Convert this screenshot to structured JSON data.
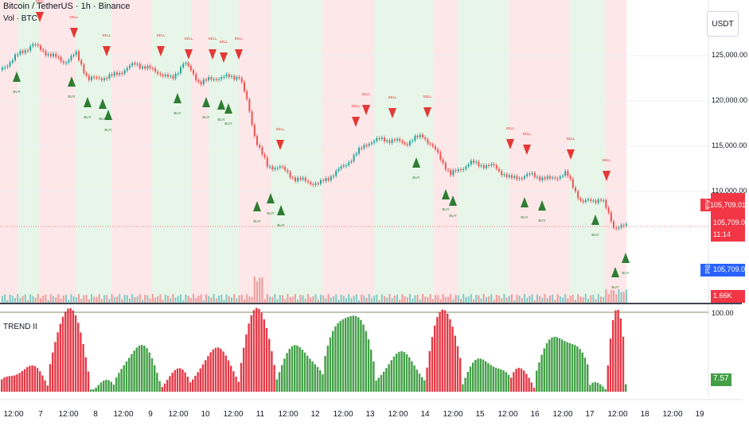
{
  "header": {
    "title": "Bitcoin / TetherUS · 1h · Binance",
    "volume_label": "Vol · BTC"
  },
  "currency": "USDT",
  "y_axis": [
    "125,000.00",
    "120,000.00",
    "115,000.00",
    "110,000.00"
  ],
  "price_tags": {
    "ask_label": "Ask",
    "ask": "105,709.01",
    "last": "105,709.01",
    "countdown": "11:14",
    "bid_label": "Bid",
    "bid": "105,709.00",
    "volume": "1.66K"
  },
  "trend_pane": {
    "label": "TREND II",
    "top_tick": "100.00",
    "value": "7.57"
  },
  "x_axis": [
    "12:00",
    "7",
    "12:00",
    "8",
    "12:00",
    "9",
    "12:00",
    "10",
    "12:00",
    "11",
    "12:00",
    "12",
    "12:00",
    "13",
    "12:00",
    "14",
    "12:00",
    "15",
    "12:00",
    "16",
    "12:00",
    "17",
    "12:00",
    "18",
    "12:00",
    "19"
  ],
  "signal_labels": {
    "buy": "BUY",
    "sell": "SELL"
  },
  "colors": {
    "up": "#26a69a",
    "down": "#ef5350",
    "bull_zone": "#e8f5e9",
    "bear_zone": "#fde7e9",
    "buy": "#2e7d32",
    "sell": "#e53935",
    "trend_up": "#43a047",
    "trend_down": "#e53946"
  }
}
